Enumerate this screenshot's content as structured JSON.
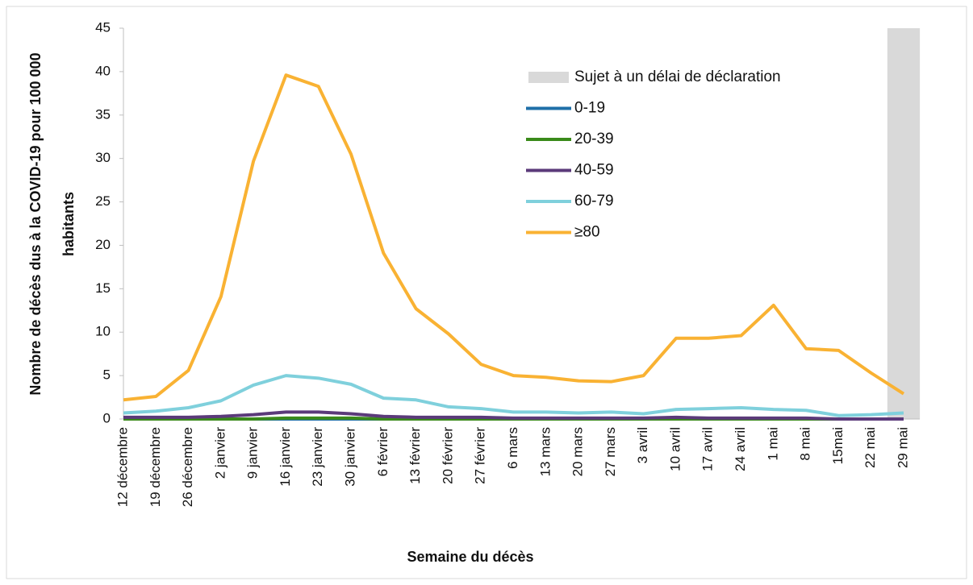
{
  "chart_data": {
    "type": "line",
    "y_axis_label": [
      "Nombre de décès dus à la COVID-19 pour 100 000",
      "habitants"
    ],
    "x_axis_label": "Semaine du décès",
    "categories": [
      "12 décembre",
      "19 décembre",
      "26 décembre",
      "2 janvier",
      "9 janvier",
      "16 janvier",
      "23 janvier",
      "30 janvier",
      "6 février",
      "13 février",
      "20 février",
      "27 février",
      "6 mars",
      "13 mars",
      "20 mars",
      "27 mars",
      "3 avril",
      "10 avril",
      "17 avril",
      "24 avril",
      "1 mai",
      "8 mai",
      "15mai",
      "22 mai",
      "29 mai"
    ],
    "series": [
      {
        "name": "Sujet à un délai de déclaration",
        "type": "bar",
        "color": "#d9d9d9",
        "values": [
          null,
          null,
          null,
          null,
          null,
          null,
          null,
          null,
          null,
          null,
          null,
          null,
          null,
          null,
          null,
          null,
          null,
          null,
          null,
          null,
          null,
          null,
          null,
          null,
          45
        ]
      },
      {
        "name": "0-19",
        "color": "#1f6fa8",
        "values": [
          0,
          0,
          0,
          0,
          0,
          0,
          0,
          0,
          0,
          0,
          0,
          0,
          0,
          0,
          0,
          0,
          0,
          0,
          0,
          0,
          0,
          0,
          0,
          0,
          0
        ]
      },
      {
        "name": "20-39",
        "color": "#3a8a1a",
        "values": [
          0,
          0,
          0,
          0,
          0,
          0.1,
          0.1,
          0.1,
          0,
          0,
          0,
          0,
          0,
          0,
          0,
          0,
          0,
          0,
          0,
          0,
          0,
          0,
          0,
          0,
          0
        ]
      },
      {
        "name": "40-59",
        "color": "#5b3a7a",
        "values": [
          0.2,
          0.2,
          0.2,
          0.3,
          0.5,
          0.8,
          0.8,
          0.6,
          0.3,
          0.2,
          0.2,
          0.2,
          0.1,
          0.1,
          0.1,
          0.1,
          0.1,
          0.2,
          0.1,
          0.1,
          0.1,
          0.1,
          0,
          0,
          0
        ]
      },
      {
        "name": "60-79",
        "color": "#7fd0dc",
        "values": [
          0.7,
          0.9,
          1.3,
          2.1,
          3.9,
          5.0,
          4.7,
          4.0,
          2.4,
          2.2,
          1.4,
          1.2,
          0.8,
          0.8,
          0.7,
          0.8,
          0.6,
          1.1,
          1.2,
          1.3,
          1.1,
          1.0,
          0.4,
          0.5,
          0.7
        ]
      },
      {
        "name": "≥80",
        "color": "#f9b233",
        "values": [
          2.2,
          2.6,
          5.6,
          14.1,
          29.7,
          39.6,
          38.3,
          30.5,
          19.1,
          12.7,
          9.8,
          6.3,
          5.0,
          4.8,
          4.4,
          4.3,
          5.0,
          9.3,
          9.3,
          9.6,
          13.1,
          8.1,
          7.9,
          5.3,
          2.9
        ]
      }
    ],
    "ylim": [
      0,
      45
    ],
    "yticks": [
      0,
      5,
      10,
      15,
      20,
      25,
      30,
      35,
      40,
      45
    ],
    "grid": false
  }
}
